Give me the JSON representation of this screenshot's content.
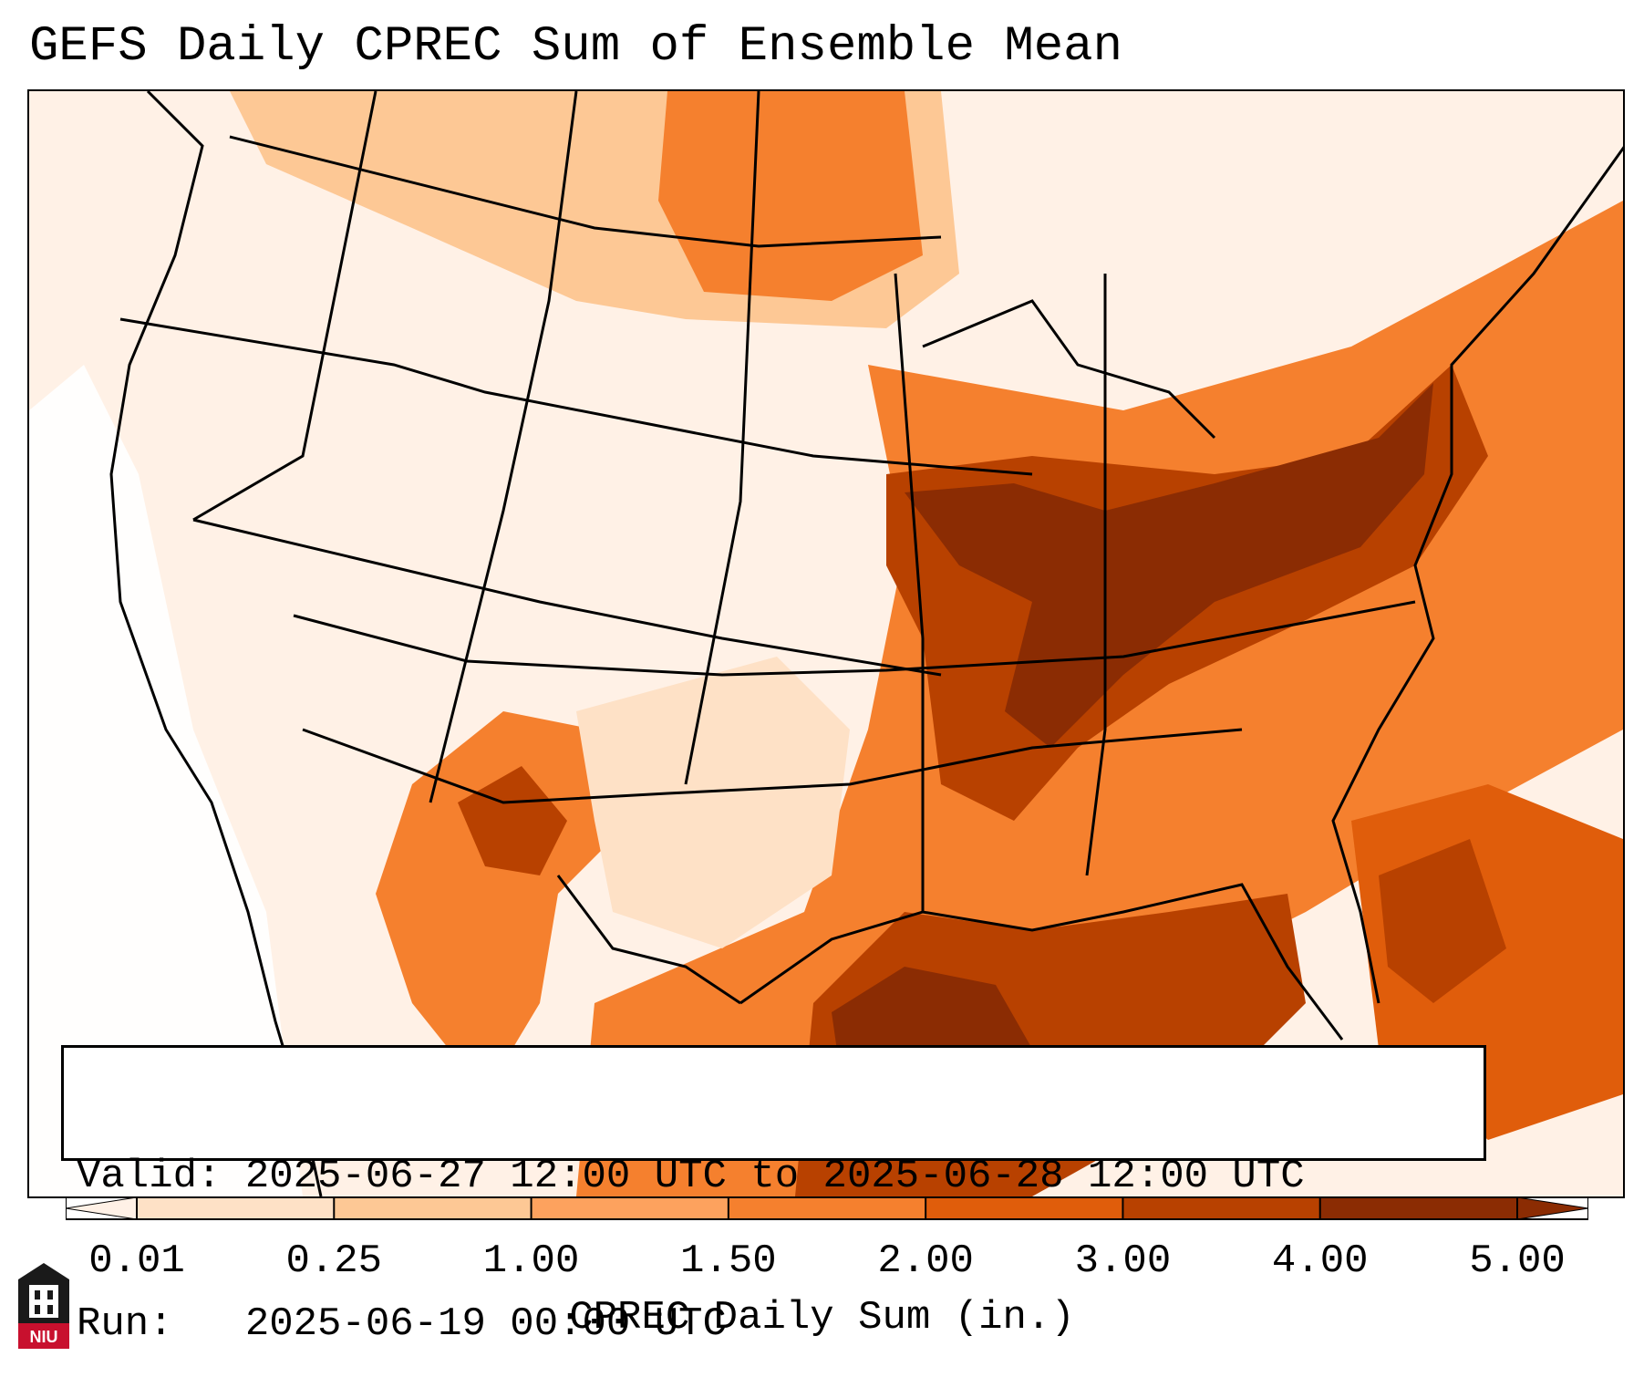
{
  "title": "GEFS Daily CPREC Sum of Ensemble Mean",
  "info": {
    "valid_label": "Valid:",
    "valid_value": "2025-06-27 12:00 UTC to 2025-06-28 12:00 UTC",
    "run_label": "Run:",
    "run_value": "2025-06-19 00:00 UTC"
  },
  "colorbar": {
    "label": "CPREC Daily Sum (in.)",
    "ticks": [
      "0.01",
      "0.25",
      "1.00",
      "1.50",
      "2.00",
      "3.00",
      "4.00",
      "5.00"
    ],
    "colors": [
      "#fff1e6",
      "#fee1c6",
      "#fdc895",
      "#fda25e",
      "#f5802e",
      "#e05d0b",
      "#b84100",
      "#8b2c03"
    ],
    "extend": "both"
  },
  "logo": {
    "text": "NIU",
    "icon": "niu-logo-icon"
  },
  "map": {
    "projection": "Lambert Conformal",
    "region": "Continental United States",
    "icon": "map-icon"
  }
}
